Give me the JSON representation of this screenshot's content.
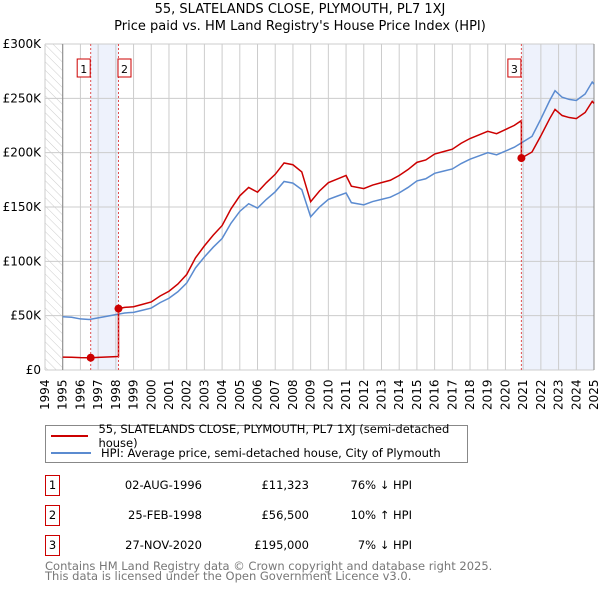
{
  "title_line1": "55, SLATELANDS CLOSE, PLYMOUTH, PL7 1XJ",
  "title_line2": "Price paid vs. HM Land Registry's House Price Index (HPI)",
  "chart_data": {
    "type": "line",
    "ylim": [
      0,
      300000
    ],
    "xlim": [
      1994,
      2025
    ],
    "y_ticks": [
      0,
      50000,
      100000,
      150000,
      200000,
      250000,
      300000
    ],
    "y_tick_labels": [
      "£0",
      "£50K",
      "£100K",
      "£150K",
      "£200K",
      "£250K",
      "£300K"
    ],
    "x_tick_labels": [
      "1994",
      "1995",
      "1996",
      "1997",
      "1998",
      "1999",
      "2000",
      "2001",
      "2002",
      "2003",
      "2004",
      "2005",
      "2006",
      "2007",
      "2008",
      "2009",
      "2010",
      "2011",
      "2012",
      "2013",
      "2014",
      "2015",
      "2016",
      "2017",
      "2018",
      "2019",
      "2020",
      "2021",
      "2022",
      "2023",
      "2024",
      "2025"
    ],
    "grid": true,
    "colors": {
      "property": "#cc0000",
      "hpi": "#5b8bd0",
      "shade": "#eef2fc"
    },
    "hpi_series": {
      "name": "HPI: Average price, semi-detached house, City of Plymouth",
      "points": [
        [
          1995,
          49000
        ],
        [
          1995.5,
          48500
        ],
        [
          1996,
          47000
        ],
        [
          1996.5,
          46500
        ],
        [
          1997,
          48000
        ],
        [
          1997.5,
          49500
        ],
        [
          1998,
          51000
        ],
        [
          1998.5,
          52500
        ],
        [
          1999,
          53000
        ],
        [
          1999.5,
          55000
        ],
        [
          2000,
          57000
        ],
        [
          2000.5,
          62000
        ],
        [
          2001,
          66000
        ],
        [
          2001.5,
          72000
        ],
        [
          2002,
          80000
        ],
        [
          2002.5,
          94000
        ],
        [
          2003,
          104000
        ],
        [
          2003.5,
          113000
        ],
        [
          2004,
          121000
        ],
        [
          2004.5,
          135000
        ],
        [
          2005,
          146000
        ],
        [
          2005.5,
          153000
        ],
        [
          2006,
          149000
        ],
        [
          2006.5,
          157000
        ],
        [
          2007,
          164000
        ],
        [
          2007.5,
          173500
        ],
        [
          2008,
          172000
        ],
        [
          2008.5,
          166000
        ],
        [
          2009,
          141000
        ],
        [
          2009.5,
          150000
        ],
        [
          2010,
          157000
        ],
        [
          2010.5,
          160000
        ],
        [
          2011,
          163000
        ],
        [
          2011.3,
          154000
        ],
        [
          2012,
          152000
        ],
        [
          2012.5,
          155000
        ],
        [
          2013,
          157000
        ],
        [
          2013.5,
          159000
        ],
        [
          2014,
          163000
        ],
        [
          2014.5,
          168000
        ],
        [
          2015,
          174000
        ],
        [
          2015.5,
          176000
        ],
        [
          2016,
          181000
        ],
        [
          2016.5,
          183000
        ],
        [
          2017,
          185000
        ],
        [
          2017.5,
          190000
        ],
        [
          2018,
          194000
        ],
        [
          2018.5,
          197000
        ],
        [
          2019,
          200000
        ],
        [
          2019.5,
          198000
        ],
        [
          2020,
          201500
        ],
        [
          2020.5,
          205000
        ],
        [
          2020.9,
          209000
        ],
        [
          2021.5,
          215000
        ],
        [
          2022,
          231000
        ],
        [
          2022.5,
          248000
        ],
        [
          2022.8,
          257000
        ],
        [
          2023.2,
          251000
        ],
        [
          2023.6,
          249000
        ],
        [
          2024,
          248000
        ],
        [
          2024.5,
          254000
        ],
        [
          2024.9,
          265000
        ],
        [
          2025,
          263000
        ]
      ]
    },
    "property_series": {
      "name": "55, SLATELANDS CLOSE, PLYMOUTH, PL7 1XJ (semi-detached house)"
    },
    "sales": [
      {
        "id": "1",
        "year": 1996.58,
        "date": "02-AUG-1996",
        "price": 11323,
        "price_label": "£11,323",
        "hpi_label": "76% ↓ HPI"
      },
      {
        "id": "2",
        "year": 1998.15,
        "date": "25-FEB-1998",
        "price": 56500,
        "price_label": "£56,500",
        "hpi_label": "10% ↑ HPI"
      },
      {
        "id": "3",
        "year": 2020.9,
        "date": "27-NOV-2020",
        "price": 195000,
        "price_label": "£195,000",
        "hpi_label": "7% ↓ HPI"
      }
    ]
  },
  "legend": {
    "property": "55, SLATELANDS CLOSE, PLYMOUTH, PL7 1XJ (semi-detached house)",
    "hpi": "HPI: Average price, semi-detached house, City of Plymouth"
  },
  "footer": {
    "line1": "Contains HM Land Registry data © Crown copyright and database right 2025.",
    "line2": "This data is licensed under the Open Government Licence v3.0."
  }
}
